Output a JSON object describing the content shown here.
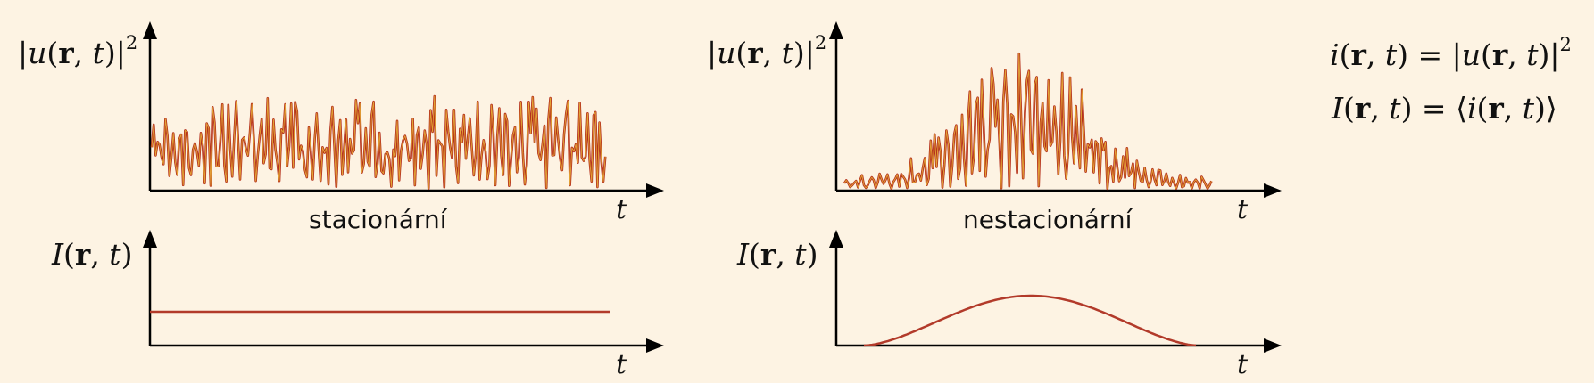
{
  "panels": {
    "stationary": {
      "caption": "stacionární",
      "upper_ylabel": "|u(r,t)|^2",
      "lower_ylabel": "I(r,t)",
      "xlabel": "t"
    },
    "nonstationary": {
      "caption": "nestacionární",
      "upper_ylabel": "|u(r,t)|^2",
      "lower_ylabel": "I(r,t)",
      "xlabel": "t"
    }
  },
  "equations": {
    "line1": "i(r,t) = |u(r,t)|^2",
    "line2": "I(r,t) = ⟨i(r,t)⟩"
  },
  "colors": {
    "background": "#fdf3e3",
    "signal": "#b5311c",
    "signal_core": "#e8b13a",
    "intensity": "#b23a2a",
    "axis": "#000000"
  },
  "chart_data": [
    {
      "type": "line",
      "title": "stacionární",
      "series": [
        {
          "description": "instantaneous intensity |u(r,t)|^2, rapidly fluctuating around a constant mean"
        },
        {
          "description": "mean intensity I(r,t), constant in time"
        }
      ]
    },
    {
      "type": "line",
      "title": "nestacionární",
      "series": [
        {
          "description": "instantaneous intensity |u(r,t)|^2, fluctuations with a bell-shaped envelope"
        },
        {
          "description": "mean intensity I(r,t), single smooth hump"
        }
      ]
    }
  ]
}
